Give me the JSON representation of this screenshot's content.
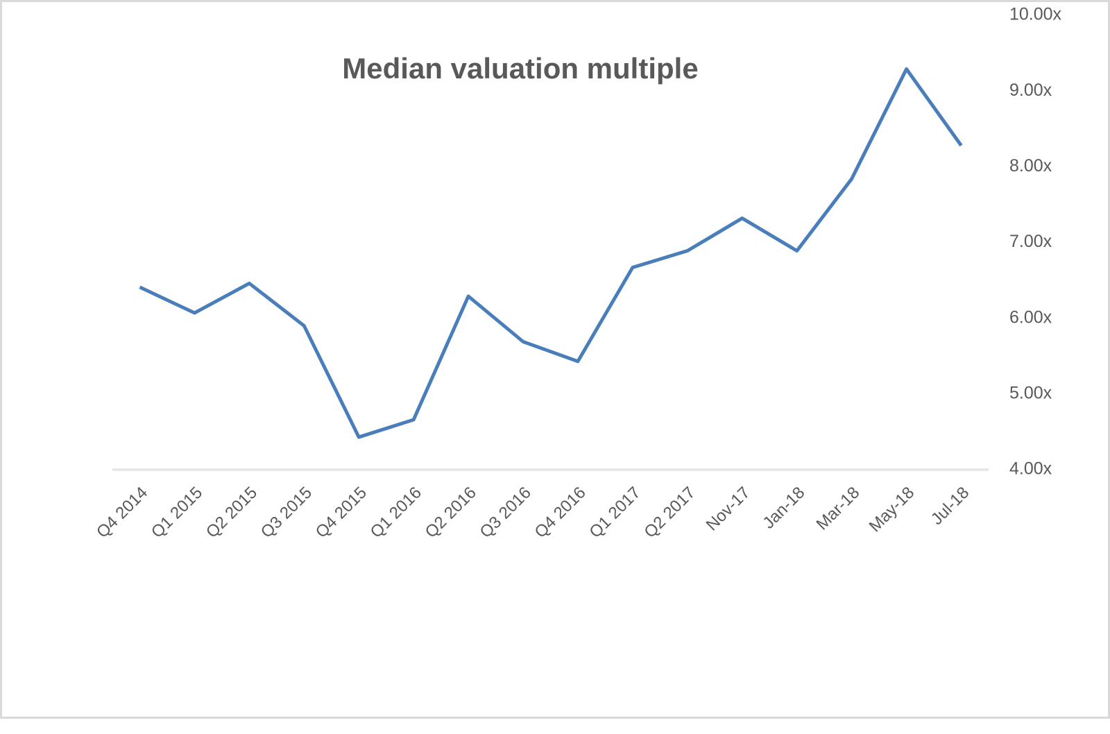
{
  "chart_data": {
    "type": "line",
    "title": "Median valuation multiple",
    "categories": [
      "Q4 2014",
      "Q1 2015",
      "Q2 2015",
      "Q3 2015",
      "Q4 2015",
      "Q1 2016",
      "Q2 2016",
      "Q3 2016",
      "Q4 2016",
      "Q1 2017",
      "Q2 2017",
      "Nov-17",
      "Jan-18",
      "Mar-18",
      "May-18",
      "Jul-18"
    ],
    "series": [
      {
        "color": "#4a7ebb",
        "values": [
          6.41,
          6.07,
          6.46,
          5.9,
          4.43,
          4.66,
          6.29,
          5.69,
          5.43,
          6.67,
          6.89,
          7.32,
          6.89,
          7.84,
          9.29,
          8.28
        ]
      }
    ],
    "ylim": [
      4,
      10
    ],
    "yticks": [
      {
        "value": 4,
        "label": "4.00x"
      },
      {
        "value": 5,
        "label": "5.00x"
      },
      {
        "value": 6,
        "label": "6.00x"
      },
      {
        "value": 7,
        "label": "7.00x"
      },
      {
        "value": 8,
        "label": "8.00x"
      },
      {
        "value": 9,
        "label": "9.00x"
      },
      {
        "value": 10,
        "label": "10.00x"
      }
    ],
    "y_axis_side": "right",
    "grid": false
  }
}
